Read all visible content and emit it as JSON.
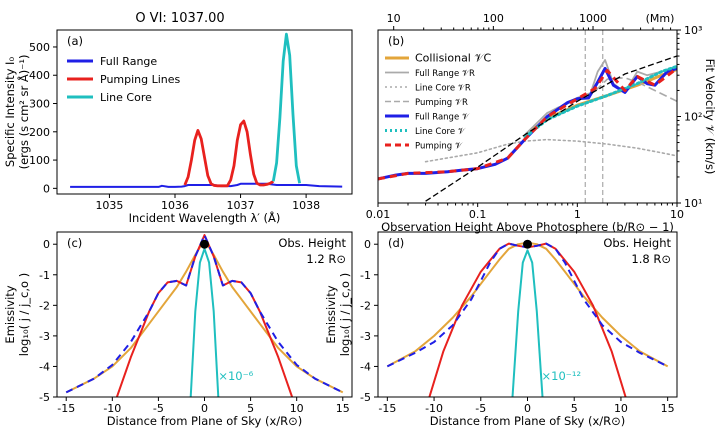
{
  "figure_title": "O VI: 1037.00",
  "colors": {
    "full": "#1f1fe6",
    "pump": "#e8211e",
    "core": "#1fbfbf",
    "coll": "#e3a53a",
    "gray": "#aaaaaa",
    "black": "#000000"
  },
  "chart_data": [
    {
      "id": "a",
      "panel_label": "(a)",
      "type": "line",
      "xlabel": "Incident Wavelength λ′ (Å)",
      "ylabel": "Specific Intensity I₀",
      "ylabel2": "(ergs (s cm² sr Å)⁻¹)",
      "xlim": [
        1034.2,
        1038.7
      ],
      "ylim": [
        -20,
        560
      ],
      "xticks": [
        1035,
        1036,
        1037,
        1038
      ],
      "yticks": [
        0,
        100,
        200,
        300,
        400,
        500
      ],
      "legend": [
        "Full Range",
        "Pumping Lines",
        "Line Core"
      ],
      "series": [
        {
          "name": "Full Range",
          "color_key": "full",
          "width": 2,
          "x": [
            1034.4,
            1034.8,
            1035.2,
            1035.6,
            1035.75,
            1035.8,
            1035.9,
            1036.0,
            1036.1,
            1036.15,
            1036.2,
            1036.6,
            1036.7,
            1036.85,
            1036.95,
            1037.0,
            1037.4,
            1037.55,
            1038.0,
            1038.2,
            1038.55
          ],
          "y": [
            5,
            5,
            5,
            5,
            5,
            9,
            5,
            5,
            6,
            8,
            12,
            12,
            8,
            8,
            12,
            16,
            16,
            12,
            12,
            8,
            6
          ]
        },
        {
          "name": "Pumping Lines",
          "color_key": "pump",
          "width": 2.8,
          "x": [
            1036.15,
            1036.2,
            1036.25,
            1036.3,
            1036.35,
            1036.4,
            1036.45,
            1036.5,
            1036.55,
            1036.6,
            1036.65,
            1036.8,
            1036.85,
            1036.9,
            1036.95,
            1037.0,
            1037.05,
            1037.1,
            1037.15,
            1037.2,
            1037.25,
            1037.3,
            1037.35,
            1037.4,
            1037.45,
            1037.5
          ],
          "y": [
            12,
            40,
            100,
            170,
            205,
            175,
            110,
            45,
            16,
            10,
            9,
            9,
            30,
            80,
            170,
            225,
            238,
            200,
            120,
            50,
            18,
            12,
            12,
            14,
            18,
            25
          ]
        },
        {
          "name": "Line Core",
          "color_key": "core",
          "width": 2.8,
          "x": [
            1037.5,
            1037.55,
            1037.6,
            1037.65,
            1037.7,
            1037.75,
            1037.8,
            1037.85,
            1037.9
          ],
          "y": [
            25,
            90,
            250,
            450,
            545,
            470,
            260,
            80,
            18
          ]
        }
      ]
    },
    {
      "id": "b",
      "panel_label": "(b)",
      "type": "line",
      "scale": "log-log",
      "xlabel": "Observation Height Above Photosphere (b/R⊙ − 1)",
      "ylabel_right": "Fit Velocity 𝒱 (km/s)",
      "top_axis_label": "(Mm)",
      "xlim": [
        0.01,
        10
      ],
      "ylim": [
        10,
        1000
      ],
      "xticks": [
        0.01,
        0.1,
        1,
        10
      ],
      "xtick_labels": [
        "0.01",
        "0.1",
        "1",
        "10"
      ],
      "yticks": [
        10,
        100,
        1000
      ],
      "ytick_labels": [
        "10¹",
        "10²",
        "10³"
      ],
      "top_ticks_Mm": [
        10,
        100,
        1000
      ],
      "top_tick_labels": [
        "10",
        "100",
        "1000"
      ],
      "vlines": [
        1.2,
        1.8
      ],
      "legend": [
        "Collisional 𝒱C",
        "Full Range 𝒱R",
        "Line Core 𝒱R",
        "Pumping 𝒱R",
        "Full Range 𝒱",
        "Line Core 𝒱",
        "Pumping 𝒱"
      ],
      "series": [
        {
          "name": "Collisional 𝒱C",
          "color_key": "coll",
          "dash": "",
          "width": 3,
          "x": [
            0.3,
            0.5,
            1,
            2,
            4,
            7,
            10
          ],
          "y": [
            60,
            95,
            135,
            175,
            230,
            300,
            350
          ]
        },
        {
          "name": "Full Range 𝒱R",
          "color_key": "gray",
          "dash": "",
          "width": 1.8,
          "x": [
            0.3,
            0.5,
            1,
            1.3,
            1.6,
            1.9,
            2.3,
            3,
            4,
            5,
            7,
            10
          ],
          "y": [
            62,
            110,
            160,
            160,
            330,
            450,
            240,
            190,
            330,
            300,
            330,
            380
          ]
        },
        {
          "name": "Line Core 𝒱R",
          "color_key": "gray",
          "dash": "2,3",
          "width": 1.6,
          "x": [
            0.03,
            0.1,
            0.2,
            0.3,
            0.5,
            1,
            2,
            4,
            7,
            10
          ],
          "y": [
            30,
            38,
            48,
            52,
            54,
            52,
            48,
            43,
            38,
            35
          ]
        },
        {
          "name": "Pumping 𝒱R",
          "color_key": "gray",
          "dash": "8,4",
          "width": 1.6,
          "x": [
            0.3,
            0.5,
            1,
            1.5,
            2,
            3,
            4,
            6,
            10
          ],
          "y": [
            62,
            110,
            165,
            195,
            270,
            280,
            250,
            200,
            150
          ]
        },
        {
          "name": "Full Range 𝒱",
          "color_key": "full",
          "dash": "",
          "width": 3,
          "x": [
            0.01,
            0.015,
            0.02,
            0.03,
            0.05,
            0.07,
            0.1,
            0.15,
            0.2,
            0.3,
            0.5,
            0.8,
            1,
            1.3,
            1.6,
            1.9,
            2.3,
            3,
            4,
            5,
            6,
            7,
            8,
            10
          ],
          "y": [
            19,
            21,
            22,
            22,
            23,
            24,
            25,
            28,
            33,
            55,
            100,
            145,
            160,
            165,
            250,
            360,
            230,
            190,
            290,
            240,
            230,
            280,
            330,
            360
          ]
        },
        {
          "name": "Line Core 𝒱",
          "color_key": "core",
          "dash": "2,3",
          "width": 3,
          "x": [
            0.3,
            0.5,
            1,
            2,
            4,
            7,
            10
          ],
          "y": [
            58,
            92,
            132,
            175,
            240,
            330,
            380
          ]
        },
        {
          "name": "Pumping 𝒱",
          "color_key": "pump",
          "dash": "7,5",
          "width": 3,
          "x": [
            0.01,
            0.02,
            0.05,
            0.1,
            0.2,
            0.3,
            0.5,
            1,
            1.5,
            2,
            3,
            4,
            6,
            10
          ],
          "y": [
            19,
            22,
            23,
            25,
            33,
            55,
            100,
            160,
            210,
            340,
            200,
            290,
            230,
            360
          ]
        },
        {
          "name": "black dashed reference",
          "color_key": "black",
          "dash": "6,3",
          "width": 1.3,
          "x": [
            0.03,
            0.1,
            0.3,
            1,
            3,
            10
          ],
          "y": [
            10.5,
            26,
            62,
            150,
            310,
            500
          ]
        }
      ]
    },
    {
      "id": "c",
      "panel_label": "(c)",
      "type": "line",
      "xlabel": "Distance from Plane of Sky (x/R⊙)",
      "ylabel": "Emissivity",
      "ylabel2": "log₁₀( j / j_c,o )",
      "annotation_title": "Obs. Height",
      "annotation_value": "1.2 R⊙",
      "scale_note": "×10⁻⁶",
      "xlim": [
        -16,
        16
      ],
      "ylim": [
        -5,
        0.4
      ],
      "xticks": [
        -15,
        -10,
        -5,
        0,
        5,
        10,
        15
      ],
      "yticks": [
        -5,
        -4,
        -3,
        -2,
        -1,
        0
      ],
      "marker": {
        "x": 0,
        "y": 0
      },
      "series": [
        {
          "name": "Collisional",
          "color_key": "coll",
          "dash": "",
          "width": 2,
          "x": [
            -15,
            -12,
            -10,
            -8,
            -6,
            -4,
            -3,
            -2,
            -1,
            -0.5,
            0,
            0.5,
            1,
            2,
            3,
            4,
            6,
            8,
            10,
            12,
            15
          ],
          "y": [
            -4.85,
            -4.4,
            -4.0,
            -3.4,
            -2.6,
            -1.8,
            -1.4,
            -0.9,
            -0.35,
            -0.1,
            0.1,
            -0.1,
            -0.35,
            -0.9,
            -1.4,
            -1.8,
            -2.6,
            -3.4,
            -4.0,
            -4.4,
            -4.85
          ]
        },
        {
          "name": "Pumping",
          "color_key": "pump",
          "dash": "",
          "width": 2,
          "x": [
            -9.5,
            -8,
            -6,
            -5,
            -4,
            -3,
            -2,
            -1,
            0,
            1,
            2,
            3,
            4,
            5,
            6,
            8,
            9.5
          ],
          "y": [
            -5,
            -3.7,
            -2.2,
            -1.6,
            -1.25,
            -1.2,
            -1.35,
            -0.4,
            0.3,
            -0.4,
            -1.35,
            -1.2,
            -1.25,
            -1.6,
            -2.2,
            -3.7,
            -5
          ]
        },
        {
          "name": "Full Range",
          "color_key": "full",
          "dash": "7,5",
          "width": 2,
          "x": [
            -15,
            -12,
            -10,
            -8,
            -6,
            -5,
            -4,
            -3,
            -2,
            -1,
            0,
            1,
            2,
            3,
            4,
            5,
            6,
            8,
            10,
            12,
            15
          ],
          "y": [
            -4.85,
            -4.4,
            -3.95,
            -3.2,
            -2.2,
            -1.6,
            -1.25,
            -1.2,
            -1.35,
            -0.4,
            0.3,
            -0.4,
            -1.35,
            -1.2,
            -1.25,
            -1.6,
            -2.2,
            -3.2,
            -3.95,
            -4.4,
            -4.85
          ]
        },
        {
          "name": "Line Core",
          "color_key": "core",
          "dash": "",
          "width": 2,
          "x": [
            -1.5,
            -1,
            -0.5,
            0,
            0.5,
            1,
            1.5
          ],
          "y": [
            -5,
            -2.2,
            -0.6,
            -0.15,
            -0.6,
            -2.2,
            -5
          ]
        }
      ]
    },
    {
      "id": "d",
      "panel_label": "(d)",
      "type": "line",
      "xlabel": "Distance from Plane of Sky (x/R⊙)",
      "ylabel": "Emissivity",
      "ylabel2": "log₁₀( j / j_c,o )",
      "annotation_title": "Obs. Height",
      "annotation_value": "1.8 R⊙",
      "scale_note": "×10⁻¹²",
      "xlim": [
        -16,
        16
      ],
      "ylim": [
        -5,
        0.4
      ],
      "xticks": [
        -15,
        -10,
        -5,
        0,
        5,
        10,
        15
      ],
      "yticks": [
        -5,
        -4,
        -3,
        -2,
        -1,
        0
      ],
      "marker": {
        "x": 0,
        "y": 0
      },
      "series": [
        {
          "name": "Collisional",
          "color_key": "coll",
          "dash": "",
          "width": 2,
          "x": [
            -15,
            -12,
            -10,
            -8,
            -6,
            -4,
            -3,
            -2,
            -1,
            0,
            1,
            2,
            3,
            4,
            6,
            8,
            10,
            12,
            15
          ],
          "y": [
            -4.0,
            -3.5,
            -3.0,
            -2.4,
            -1.7,
            -0.9,
            -0.5,
            -0.15,
            0,
            0.05,
            0,
            -0.15,
            -0.5,
            -0.9,
            -1.7,
            -2.4,
            -3.0,
            -3.5,
            -4.0
          ]
        },
        {
          "name": "Pumping",
          "color_key": "pump",
          "dash": "",
          "width": 2,
          "x": [
            -10.5,
            -9,
            -7,
            -5,
            -3,
            -2,
            -1,
            0,
            1,
            2,
            3,
            5,
            7,
            9,
            10.5
          ],
          "y": [
            -5,
            -3.5,
            -2.0,
            -0.9,
            -0.15,
            0.02,
            -0.05,
            -0.1,
            -0.05,
            0.02,
            -0.15,
            -0.9,
            -2.0,
            -3.5,
            -5
          ]
        },
        {
          "name": "Full Range",
          "color_key": "full",
          "dash": "7,5",
          "width": 2,
          "x": [
            -15,
            -12,
            -10,
            -8,
            -6,
            -4,
            -3,
            -2,
            -1,
            0,
            1,
            2,
            3,
            4,
            6,
            8,
            10,
            12,
            15
          ],
          "y": [
            -4.0,
            -3.55,
            -3.2,
            -2.65,
            -1.8,
            -0.6,
            -0.15,
            0.02,
            -0.05,
            -0.1,
            -0.05,
            0.02,
            -0.15,
            -0.6,
            -1.8,
            -2.65,
            -3.2,
            -3.55,
            -4.0
          ]
        },
        {
          "name": "Line Core",
          "color_key": "core",
          "dash": "",
          "width": 2,
          "x": [
            -1.6,
            -1,
            -0.5,
            0,
            0.5,
            1,
            1.6
          ],
          "y": [
            -5,
            -2.2,
            -0.6,
            -0.2,
            -0.6,
            -2.2,
            -5
          ]
        }
      ]
    }
  ]
}
